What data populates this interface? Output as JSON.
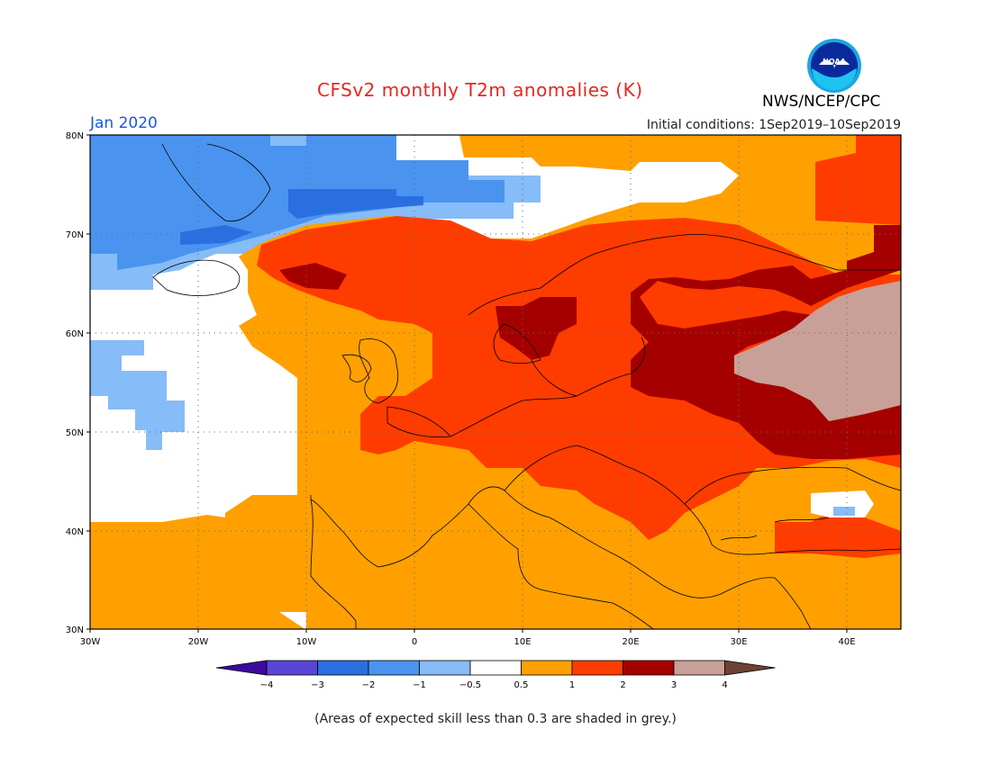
{
  "header": {
    "title": "CFSv2 monthly T2m anomalies (K)",
    "agency": "NWS/NCEP/CPC",
    "logo_text": "NOAA",
    "month": "Jan 2020",
    "initial_conditions": "Initial conditions: 1Sep2019–10Sep2019"
  },
  "axes": {
    "lat_labels": [
      "80N",
      "70N",
      "60N",
      "50N",
      "40N",
      "30N"
    ],
    "lat_values": [
      80,
      70,
      60,
      50,
      40,
      30
    ],
    "lon_labels": [
      "30W",
      "20W",
      "10W",
      "0",
      "10E",
      "20E",
      "30E",
      "40E"
    ],
    "lon_values": [
      -30,
      -20,
      -10,
      0,
      10,
      20,
      30,
      40
    ],
    "lat_range": [
      30,
      80
    ],
    "lon_range": [
      -30,
      45
    ],
    "grid": "dotted"
  },
  "colorbar": {
    "labels": [
      "−4",
      "−3",
      "−2",
      "−1",
      "−0.5",
      "0.5",
      "1",
      "2",
      "3",
      "4"
    ],
    "colors": [
      "#3c0a9e",
      "#5845d6",
      "#2a6fe0",
      "#4a94f0",
      "#86bcf7",
      "#ffffff",
      "#ffa000",
      "#ff3c00",
      "#a50000",
      "#c8a098",
      "#6e4132"
    ]
  },
  "legend_colors": {
    "cold1": "#86bcf7",
    "cold2": "#4a94f0",
    "cold3": "#2a6fe0",
    "warm1": "#ffa000",
    "warm2": "#ff3c00",
    "warm3": "#a50000",
    "warm4": "#c8a098"
  },
  "footer": {
    "note": "(Areas of expected skill less than 0.3 are shaded in grey.)"
  }
}
